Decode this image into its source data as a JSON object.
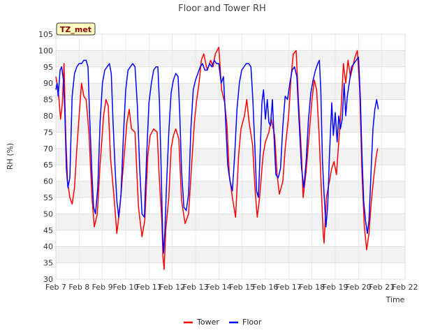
{
  "chart_data": {
    "type": "line",
    "title": "Floor and Tower RH",
    "badge": "TZ_met",
    "xlabel": "Time",
    "ylabel": "RH (%)",
    "ylim": [
      30,
      105
    ],
    "xlim": [
      0,
      15
    ],
    "y_ticks": [
      30,
      35,
      40,
      45,
      50,
      55,
      60,
      65,
      70,
      75,
      80,
      85,
      90,
      95,
      100,
      105
    ],
    "x_ticks": [
      {
        "pos": 0,
        "label": "Feb 7"
      },
      {
        "pos": 1,
        "label": "Feb 8"
      },
      {
        "pos": 2,
        "label": "Feb 9"
      },
      {
        "pos": 3,
        "label": "Feb 10"
      },
      {
        "pos": 4,
        "label": "Feb 11"
      },
      {
        "pos": 5,
        "label": "Feb 12"
      },
      {
        "pos": 6,
        "label": "Feb 13"
      },
      {
        "pos": 7,
        "label": "Feb 14"
      },
      {
        "pos": 8,
        "label": "Feb 15"
      },
      {
        "pos": 9,
        "label": "Feb 16"
      },
      {
        "pos": 10,
        "label": "Feb 17"
      },
      {
        "pos": 11,
        "label": "Feb 18"
      },
      {
        "pos": 12,
        "label": "Feb 19"
      },
      {
        "pos": 13,
        "label": "Feb 20"
      },
      {
        "pos": 14,
        "label": "Feb 21"
      },
      {
        "pos": 15,
        "label": "Feb 22"
      }
    ],
    "legend_position": "bottom-center",
    "series": [
      {
        "name": "Tower",
        "color": "#ff0000",
        "points": [
          [
            0.0,
            92
          ],
          [
            0.1,
            88
          ],
          [
            0.2,
            79
          ],
          [
            0.28,
            84
          ],
          [
            0.35,
            96
          ],
          [
            0.42,
            75
          ],
          [
            0.5,
            60
          ],
          [
            0.6,
            55
          ],
          [
            0.7,
            53
          ],
          [
            0.8,
            58
          ],
          [
            0.9,
            70
          ],
          [
            1.0,
            80
          ],
          [
            1.1,
            90
          ],
          [
            1.2,
            86
          ],
          [
            1.3,
            85
          ],
          [
            1.42,
            75
          ],
          [
            1.55,
            55
          ],
          [
            1.65,
            46
          ],
          [
            1.78,
            50
          ],
          [
            1.9,
            65
          ],
          [
            2.05,
            80
          ],
          [
            2.15,
            85
          ],
          [
            2.25,
            83
          ],
          [
            2.35,
            67
          ],
          [
            2.5,
            55
          ],
          [
            2.62,
            44
          ],
          [
            2.75,
            52
          ],
          [
            2.9,
            65
          ],
          [
            3.05,
            78
          ],
          [
            3.15,
            82
          ],
          [
            3.25,
            76
          ],
          [
            3.4,
            75
          ],
          [
            3.55,
            52
          ],
          [
            3.7,
            43
          ],
          [
            3.82,
            48
          ],
          [
            3.95,
            68
          ],
          [
            4.05,
            74
          ],
          [
            4.2,
            76
          ],
          [
            4.35,
            75
          ],
          [
            4.45,
            60
          ],
          [
            4.55,
            48
          ],
          [
            4.6,
            37
          ],
          [
            4.65,
            33
          ],
          [
            4.72,
            45
          ],
          [
            4.85,
            55
          ],
          [
            4.95,
            70
          ],
          [
            5.05,
            74
          ],
          [
            5.15,
            76
          ],
          [
            5.28,
            73
          ],
          [
            5.4,
            54
          ],
          [
            5.55,
            47
          ],
          [
            5.7,
            50
          ],
          [
            5.85,
            67
          ],
          [
            5.95,
            78
          ],
          [
            6.05,
            85
          ],
          [
            6.15,
            90
          ],
          [
            6.25,
            97
          ],
          [
            6.35,
            99
          ],
          [
            6.5,
            94
          ],
          [
            6.65,
            97
          ],
          [
            6.75,
            95
          ],
          [
            6.85,
            99
          ],
          [
            7.0,
            101
          ],
          [
            7.12,
            88
          ],
          [
            7.25,
            84
          ],
          [
            7.35,
            77
          ],
          [
            7.45,
            62
          ],
          [
            7.58,
            55
          ],
          [
            7.72,
            49
          ],
          [
            7.85,
            68
          ],
          [
            7.95,
            76
          ],
          [
            8.1,
            80
          ],
          [
            8.2,
            85
          ],
          [
            8.3,
            78
          ],
          [
            8.45,
            71
          ],
          [
            8.55,
            58
          ],
          [
            8.65,
            49
          ],
          [
            8.75,
            55
          ],
          [
            8.9,
            68
          ],
          [
            9.0,
            72
          ],
          [
            9.15,
            75
          ],
          [
            9.25,
            79
          ],
          [
            9.4,
            74
          ],
          [
            9.5,
            62
          ],
          [
            9.6,
            56
          ],
          [
            9.75,
            60
          ],
          [
            9.85,
            70
          ],
          [
            10.0,
            80
          ],
          [
            10.1,
            92
          ],
          [
            10.2,
            99
          ],
          [
            10.32,
            100
          ],
          [
            10.42,
            85
          ],
          [
            10.55,
            68
          ],
          [
            10.62,
            55
          ],
          [
            10.75,
            63
          ],
          [
            10.9,
            76
          ],
          [
            11.0,
            85
          ],
          [
            11.1,
            91
          ],
          [
            11.2,
            88
          ],
          [
            11.3,
            75
          ],
          [
            11.4,
            58
          ],
          [
            11.48,
            44
          ],
          [
            11.52,
            41
          ],
          [
            11.62,
            55
          ],
          [
            11.75,
            60
          ],
          [
            11.85,
            64
          ],
          [
            11.95,
            66
          ],
          [
            12.05,
            62
          ],
          [
            12.15,
            72
          ],
          [
            12.25,
            82
          ],
          [
            12.35,
            96
          ],
          [
            12.45,
            90
          ],
          [
            12.55,
            97
          ],
          [
            12.65,
            92
          ],
          [
            12.75,
            95
          ],
          [
            12.85,
            98
          ],
          [
            12.95,
            100
          ],
          [
            13.05,
            88
          ],
          [
            13.15,
            62
          ],
          [
            13.25,
            46
          ],
          [
            13.35,
            39
          ],
          [
            13.45,
            44
          ],
          [
            13.55,
            54
          ],
          [
            13.65,
            61
          ],
          [
            13.75,
            67
          ],
          [
            13.82,
            70
          ]
        ]
      },
      {
        "name": "Floor",
        "color": "#0000ff",
        "points": [
          [
            0.0,
            88
          ],
          [
            0.05,
            90
          ],
          [
            0.1,
            86
          ],
          [
            0.18,
            94
          ],
          [
            0.25,
            95
          ],
          [
            0.32,
            91
          ],
          [
            0.38,
            82
          ],
          [
            0.45,
            64
          ],
          [
            0.52,
            58
          ],
          [
            0.6,
            61
          ],
          [
            0.7,
            86
          ],
          [
            0.8,
            93
          ],
          [
            0.9,
            95
          ],
          [
            1.0,
            96
          ],
          [
            1.1,
            96
          ],
          [
            1.2,
            97
          ],
          [
            1.3,
            97
          ],
          [
            1.38,
            95
          ],
          [
            1.45,
            80
          ],
          [
            1.55,
            62
          ],
          [
            1.62,
            52
          ],
          [
            1.7,
            50
          ],
          [
            1.8,
            58
          ],
          [
            1.9,
            78
          ],
          [
            2.0,
            90
          ],
          [
            2.1,
            94
          ],
          [
            2.2,
            95
          ],
          [
            2.3,
            96
          ],
          [
            2.38,
            93
          ],
          [
            2.45,
            79
          ],
          [
            2.55,
            63
          ],
          [
            2.62,
            54
          ],
          [
            2.7,
            49
          ],
          [
            2.8,
            56
          ],
          [
            2.9,
            74
          ],
          [
            3.0,
            88
          ],
          [
            3.1,
            94
          ],
          [
            3.2,
            95
          ],
          [
            3.3,
            96
          ],
          [
            3.4,
            95
          ],
          [
            3.5,
            83
          ],
          [
            3.6,
            64
          ],
          [
            3.7,
            50
          ],
          [
            3.8,
            49
          ],
          [
            3.9,
            68
          ],
          [
            4.0,
            84
          ],
          [
            4.1,
            90
          ],
          [
            4.2,
            94
          ],
          [
            4.3,
            95
          ],
          [
            4.38,
            95
          ],
          [
            4.45,
            84
          ],
          [
            4.52,
            64
          ],
          [
            4.58,
            45
          ],
          [
            4.62,
            38
          ],
          [
            4.68,
            44
          ],
          [
            4.75,
            58
          ],
          [
            4.85,
            75
          ],
          [
            4.95,
            87
          ],
          [
            5.05,
            91
          ],
          [
            5.15,
            93
          ],
          [
            5.25,
            92
          ],
          [
            5.32,
            81
          ],
          [
            5.4,
            63
          ],
          [
            5.5,
            52
          ],
          [
            5.6,
            51
          ],
          [
            5.7,
            56
          ],
          [
            5.8,
            76
          ],
          [
            5.9,
            88
          ],
          [
            6.0,
            91
          ],
          [
            6.1,
            93
          ],
          [
            6.2,
            95
          ],
          [
            6.3,
            96
          ],
          [
            6.4,
            94
          ],
          [
            6.5,
            94
          ],
          [
            6.6,
            96
          ],
          [
            6.7,
            95
          ],
          [
            6.8,
            97
          ],
          [
            6.9,
            96
          ],
          [
            7.0,
            96
          ],
          [
            7.1,
            90
          ],
          [
            7.2,
            92
          ],
          [
            7.28,
            80
          ],
          [
            7.38,
            65
          ],
          [
            7.48,
            60
          ],
          [
            7.58,
            57
          ],
          [
            7.68,
            68
          ],
          [
            7.78,
            82
          ],
          [
            7.88,
            90
          ],
          [
            7.98,
            94
          ],
          [
            8.08,
            95
          ],
          [
            8.18,
            96
          ],
          [
            8.28,
            96
          ],
          [
            8.38,
            95
          ],
          [
            8.46,
            85
          ],
          [
            8.55,
            70
          ],
          [
            8.62,
            57
          ],
          [
            8.7,
            55
          ],
          [
            8.78,
            70
          ],
          [
            8.85,
            84
          ],
          [
            8.92,
            88
          ],
          [
            9.0,
            79
          ],
          [
            9.08,
            85
          ],
          [
            9.15,
            78
          ],
          [
            9.22,
            77
          ],
          [
            9.3,
            85
          ],
          [
            9.38,
            72
          ],
          [
            9.45,
            62
          ],
          [
            9.55,
            61
          ],
          [
            9.65,
            64
          ],
          [
            9.75,
            77
          ],
          [
            9.85,
            86
          ],
          [
            9.95,
            85
          ],
          [
            10.05,
            90
          ],
          [
            10.15,
            94
          ],
          [
            10.25,
            95
          ],
          [
            10.35,
            92
          ],
          [
            10.45,
            78
          ],
          [
            10.55,
            64
          ],
          [
            10.65,
            58
          ],
          [
            10.75,
            66
          ],
          [
            10.85,
            79
          ],
          [
            10.95,
            87
          ],
          [
            11.05,
            91
          ],
          [
            11.15,
            94
          ],
          [
            11.25,
            96
          ],
          [
            11.32,
            97
          ],
          [
            11.38,
            88
          ],
          [
            11.45,
            66
          ],
          [
            11.52,
            56
          ],
          [
            11.6,
            46
          ],
          [
            11.68,
            53
          ],
          [
            11.75,
            68
          ],
          [
            11.85,
            84
          ],
          [
            11.92,
            74
          ],
          [
            12.0,
            81
          ],
          [
            12.08,
            72
          ],
          [
            12.15,
            80
          ],
          [
            12.22,
            76
          ],
          [
            12.3,
            79
          ],
          [
            12.38,
            90
          ],
          [
            12.45,
            80
          ],
          [
            12.52,
            86
          ],
          [
            12.6,
            90
          ],
          [
            12.7,
            95
          ],
          [
            12.8,
            96
          ],
          [
            12.9,
            97
          ],
          [
            13.0,
            98
          ],
          [
            13.08,
            85
          ],
          [
            13.15,
            68
          ],
          [
            13.22,
            54
          ],
          [
            13.3,
            48
          ],
          [
            13.38,
            44
          ],
          [
            13.45,
            48
          ],
          [
            13.55,
            65
          ],
          [
            13.62,
            76
          ],
          [
            13.7,
            82
          ],
          [
            13.78,
            85
          ],
          [
            13.85,
            82
          ]
        ]
      }
    ]
  }
}
